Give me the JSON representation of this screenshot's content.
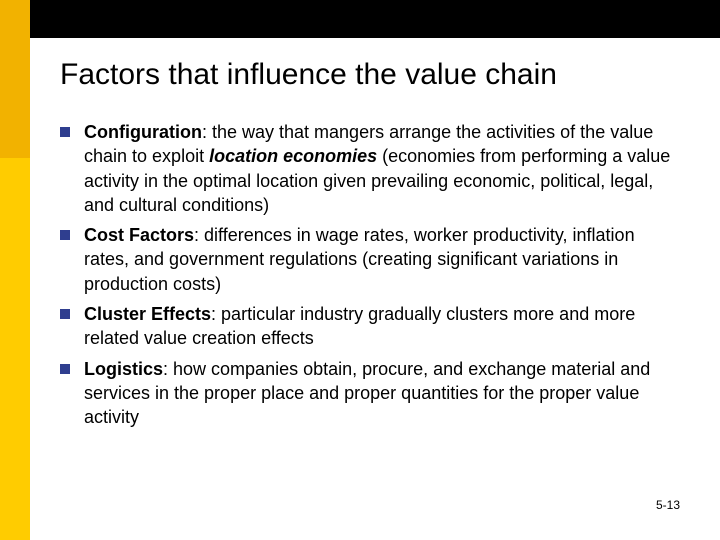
{
  "colors": {
    "top_stripe": "#000000",
    "top_accent": "#f2b200",
    "side_stripe": "#ffcc00",
    "side_stripe_top": "#f2b200",
    "bullet_marker": "#2f3e8f",
    "text": "#000000",
    "background": "#ffffff"
  },
  "typography": {
    "title_fontsize": 30,
    "body_fontsize": 18,
    "page_number_fontsize": 12,
    "font_family": "Arial"
  },
  "title": "Factors that influence the value chain",
  "bullets": [
    {
      "bold": "Configuration",
      "text_before_emph": ": the way that mangers arrange the activities of the value chain to exploit ",
      "emph": "location economies",
      "text_after_emph": " (economies from performing a value activity in the optimal location given prevailing economic, political, legal, and cultural conditions)"
    },
    {
      "bold": "Cost Factors",
      "text_before_emph": ": differences in wage rates, worker productivity, inflation rates, and government regulations (creating significant variations in production costs)",
      "emph": "",
      "text_after_emph": ""
    },
    {
      "bold": "Cluster Effects",
      "text_before_emph": ": particular industry gradually clusters more and more related value creation effects",
      "emph": "",
      "text_after_emph": ""
    },
    {
      "bold": "Logistics",
      "text_before_emph": ": how companies obtain, procure, and exchange material and services in the proper place and proper quantities for the proper value activity",
      "emph": "",
      "text_after_emph": ""
    }
  ],
  "page_number": "5-13"
}
